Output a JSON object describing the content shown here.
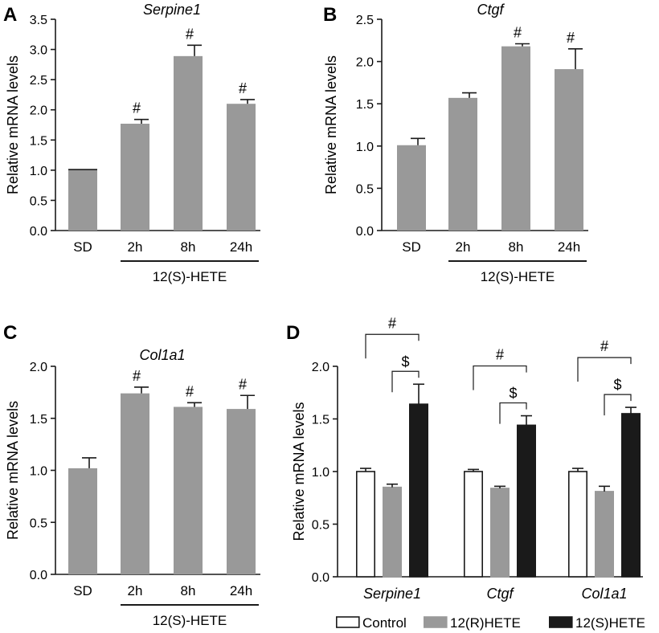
{
  "chart_data": [
    {
      "panel": "A",
      "type": "bar",
      "title": "Serpine1",
      "ylabel": "Relative mRNA levels",
      "categories": [
        "SD",
        "2h",
        "8h",
        "24h"
      ],
      "values": [
        1.01,
        1.77,
        2.89,
        2.1
      ],
      "errors": [
        0.0,
        0.07,
        0.18,
        0.07
      ],
      "significance": [
        "",
        "#",
        "#",
        "#"
      ],
      "ylim": [
        0,
        3.5
      ],
      "yticks": [
        "0.0",
        "0.5",
        "1.0",
        "1.5",
        "2.0",
        "2.5",
        "3.0",
        "3.5"
      ],
      "group_label": "12(S)-HETE",
      "bar_color": "#999999"
    },
    {
      "panel": "B",
      "type": "bar",
      "title": "Ctgf",
      "ylabel": "Relative mRNA levels",
      "categories": [
        "SD",
        "2h",
        "8h",
        "24h"
      ],
      "values": [
        1.01,
        1.57,
        2.18,
        1.91
      ],
      "errors": [
        0.08,
        0.06,
        0.03,
        0.24
      ],
      "significance": [
        "",
        "",
        "#",
        "#"
      ],
      "ylim": [
        0,
        2.5
      ],
      "yticks": [
        "0.0",
        "0.5",
        "1.0",
        "1.5",
        "2.0",
        "2.5"
      ],
      "group_label": "12(S)-HETE",
      "bar_color": "#999999"
    },
    {
      "panel": "C",
      "type": "bar",
      "title": "Col1a1",
      "ylabel": "Relative mRNA levels",
      "categories": [
        "SD",
        "2h",
        "8h",
        "24h"
      ],
      "values": [
        1.02,
        1.74,
        1.61,
        1.59
      ],
      "errors": [
        0.1,
        0.06,
        0.04,
        0.13
      ],
      "significance": [
        "",
        "#",
        "#",
        "#"
      ],
      "ylim": [
        0,
        2.0
      ],
      "yticks": [
        "0.0",
        "0.5",
        "1.0",
        "1.5",
        "2.0"
      ],
      "group_label": "12(S)-HETE",
      "bar_color": "#999999"
    },
    {
      "panel": "D",
      "type": "bar",
      "title": "",
      "ylabel": "Relative mRNA levels",
      "categories": [
        "Serpine1",
        "Ctgf",
        "Col1a1"
      ],
      "ylim": [
        0,
        2.0
      ],
      "yticks": [
        "0.0",
        "0.5",
        "1.0",
        "1.5",
        "2.0"
      ],
      "series": [
        {
          "name": "Control",
          "values": [
            1.0,
            1.0,
            1.0
          ],
          "errors": [
            0.03,
            0.02,
            0.03
          ],
          "fill": "#ffffff",
          "stroke": "#1a1a1a"
        },
        {
          "name": "12(R)HETE",
          "values": [
            0.85,
            0.84,
            0.81
          ],
          "errors": [
            0.03,
            0.02,
            0.05
          ],
          "fill": "#999999",
          "stroke": "#999999"
        },
        {
          "name": "12(S)HETE",
          "values": [
            1.64,
            1.44,
            1.55
          ],
          "errors": [
            0.19,
            0.09,
            0.06
          ],
          "fill": "#1a1a1a",
          "stroke": "#1a1a1a"
        }
      ],
      "comparisons": [
        {
          "symbol": "#",
          "from": "Control",
          "to": "12(S)HETE"
        },
        {
          "symbol": "$",
          "from": "12(R)HETE",
          "to": "12(S)HETE"
        }
      ]
    }
  ]
}
